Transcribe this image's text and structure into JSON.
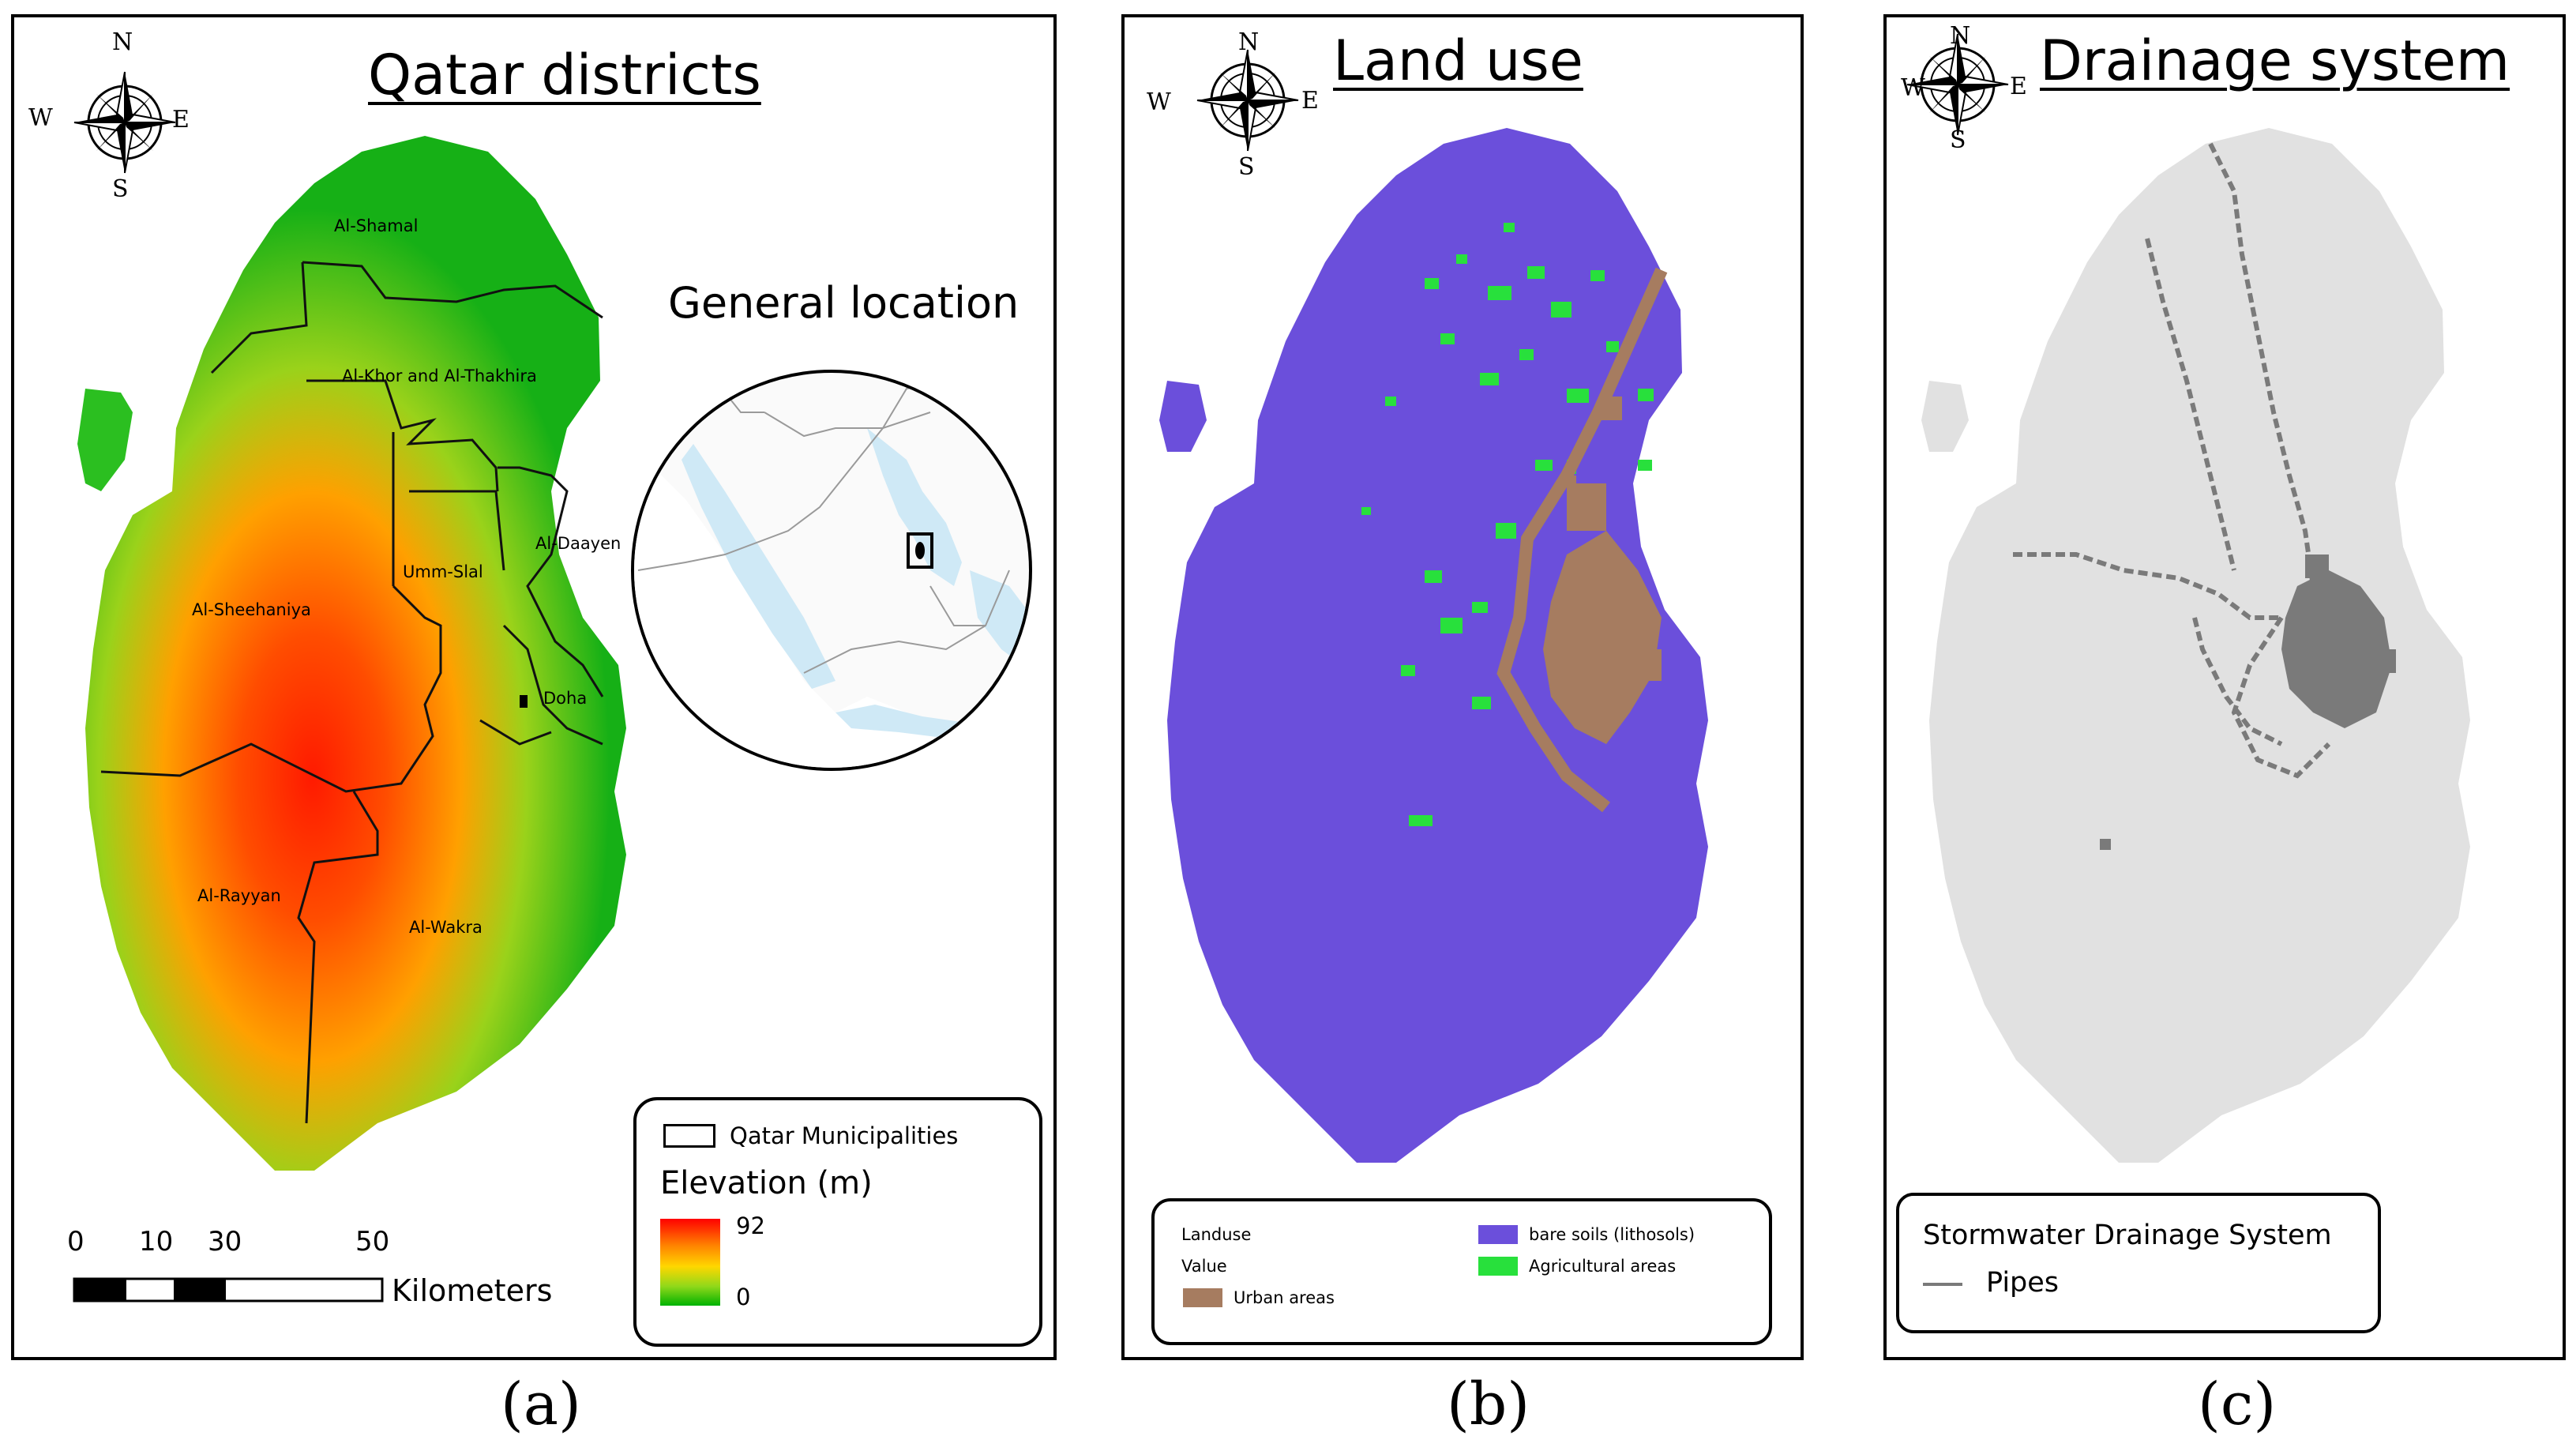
{
  "panel_a": {
    "title": "Qatar districts",
    "inset_title": "General location",
    "compass": {
      "n": "N",
      "s": "S",
      "e": "E",
      "w": "W"
    },
    "districts": [
      "Al-Shamal",
      "Al-Khor and Al-Thakhira",
      "Umm-Slal",
      "Al-Daayen",
      "Al-Sheehaniya",
      "Doha",
      "Al-Rayyan",
      "Al-Wakra"
    ],
    "scale": {
      "ticks": [
        "0",
        "10",
        "30",
        "50"
      ],
      "unit": "Kilometers"
    },
    "legend": {
      "boundary_label": "Qatar Municipalities",
      "elevation_title": "Elevation (m)",
      "max": "92",
      "min": "0",
      "gradient_colors": [
        "#ff0000",
        "#ff8000",
        "#ffd700",
        "#8fd81a",
        "#00b200"
      ]
    },
    "caption": "(a)"
  },
  "panel_b": {
    "title": "Land use",
    "compass": {
      "n": "N",
      "s": "S",
      "e": "E",
      "w": "W"
    },
    "legend": {
      "field": "Landuse",
      "value_label": "Value",
      "classes": [
        {
          "label": "Urban areas",
          "color": "#a67c60"
        },
        {
          "label": "bare soils (lithosols)",
          "color": "#6b4fdb"
        },
        {
          "label": "Agricultural areas",
          "color": "#28e03c"
        }
      ]
    },
    "caption": "(b)"
  },
  "panel_c": {
    "title": "Drainage system",
    "compass": {
      "n": "N",
      "s": "S",
      "e": "E",
      "w": "W"
    },
    "legend": {
      "title": "Stormwater Drainage System",
      "item": "Pipes",
      "pipe_color": "#7a7a7a"
    },
    "land_color": "#e1e1e1",
    "caption": "(c)"
  }
}
